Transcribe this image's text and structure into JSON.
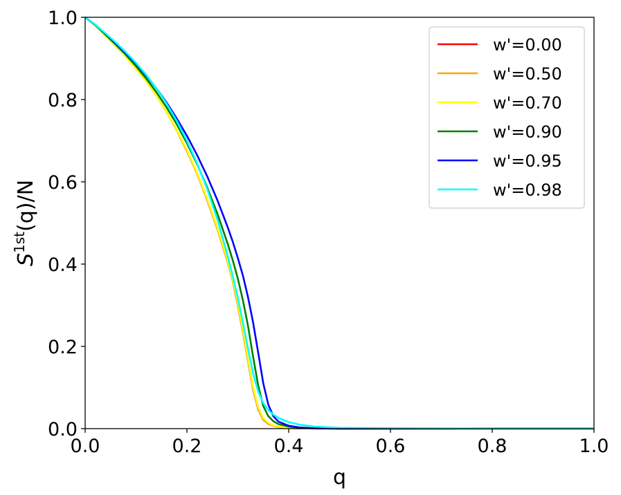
{
  "chart_data": {
    "type": "line",
    "title": "",
    "xlabel": "q",
    "ylabel_base": "S",
    "ylabel_sup": "1st",
    "ylabel_rest": "(q)/N",
    "xlim": [
      0.0,
      1.0
    ],
    "ylim": [
      0.0,
      1.0
    ],
    "xticks": [
      "0.0",
      "0.2",
      "0.4",
      "0.6",
      "0.8",
      "1.0"
    ],
    "yticks": [
      "0.0",
      "0.2",
      "0.4",
      "0.6",
      "0.8",
      "1.0"
    ],
    "grid": false,
    "legend_position": "top-right",
    "series": [
      {
        "name": "w'=0.00",
        "color": "#ff0000",
        "x": [
          0,
          0.02,
          0.04,
          0.06,
          0.08,
          0.1,
          0.12,
          0.14,
          0.16,
          0.18,
          0.2,
          0.22,
          0.24,
          0.26,
          0.28,
          0.29,
          0.3,
          0.31,
          0.32,
          0.33,
          0.34,
          0.35,
          0.36,
          0.37,
          0.38,
          0.4,
          0.42,
          0.45,
          0.5,
          0.6,
          0.8,
          1.0
        ],
        "y": [
          1.0,
          0.98,
          0.955,
          0.93,
          0.905,
          0.875,
          0.845,
          0.81,
          0.77,
          0.725,
          0.675,
          0.62,
          0.555,
          0.485,
          0.405,
          0.36,
          0.3,
          0.235,
          0.165,
          0.095,
          0.048,
          0.022,
          0.012,
          0.007,
          0.004,
          0.002,
          0.001,
          0.0,
          0.0,
          0.0,
          0.0,
          0.0
        ]
      },
      {
        "name": "w'=0.50",
        "color": "#ffa500",
        "x": [
          0,
          0.02,
          0.04,
          0.06,
          0.08,
          0.1,
          0.12,
          0.14,
          0.16,
          0.18,
          0.2,
          0.22,
          0.24,
          0.26,
          0.28,
          0.29,
          0.3,
          0.31,
          0.32,
          0.33,
          0.34,
          0.35,
          0.36,
          0.37,
          0.38,
          0.4,
          0.42,
          0.45,
          0.5,
          0.6,
          0.8,
          1.0
        ],
        "y": [
          1.0,
          0.98,
          0.955,
          0.93,
          0.905,
          0.875,
          0.845,
          0.81,
          0.77,
          0.725,
          0.676,
          0.62,
          0.556,
          0.486,
          0.406,
          0.361,
          0.302,
          0.237,
          0.167,
          0.097,
          0.05,
          0.023,
          0.013,
          0.007,
          0.004,
          0.002,
          0.001,
          0.0,
          0.0,
          0.0,
          0.0,
          0.0
        ]
      },
      {
        "name": "w'=0.70",
        "color": "#ffff00",
        "x": [
          0,
          0.02,
          0.04,
          0.06,
          0.08,
          0.1,
          0.12,
          0.14,
          0.16,
          0.18,
          0.2,
          0.22,
          0.24,
          0.26,
          0.28,
          0.29,
          0.3,
          0.31,
          0.32,
          0.33,
          0.34,
          0.35,
          0.36,
          0.37,
          0.38,
          0.4,
          0.42,
          0.45,
          0.5,
          0.6,
          0.8,
          1.0
        ],
        "y": [
          1.0,
          0.98,
          0.955,
          0.93,
          0.905,
          0.875,
          0.845,
          0.81,
          0.77,
          0.726,
          0.677,
          0.622,
          0.558,
          0.488,
          0.408,
          0.363,
          0.305,
          0.24,
          0.17,
          0.1,
          0.052,
          0.025,
          0.014,
          0.008,
          0.005,
          0.002,
          0.001,
          0.0,
          0.0,
          0.0,
          0.0,
          0.0
        ]
      },
      {
        "name": "w'=0.90",
        "color": "#008000",
        "x": [
          0,
          0.02,
          0.04,
          0.06,
          0.08,
          0.1,
          0.12,
          0.14,
          0.16,
          0.18,
          0.2,
          0.22,
          0.24,
          0.26,
          0.28,
          0.29,
          0.3,
          0.31,
          0.32,
          0.33,
          0.34,
          0.35,
          0.36,
          0.37,
          0.38,
          0.4,
          0.42,
          0.45,
          0.5,
          0.6,
          0.8,
          1.0
        ],
        "y": [
          1.0,
          0.981,
          0.958,
          0.934,
          0.909,
          0.881,
          0.851,
          0.818,
          0.781,
          0.74,
          0.694,
          0.643,
          0.586,
          0.522,
          0.45,
          0.41,
          0.365,
          0.312,
          0.25,
          0.175,
          0.105,
          0.055,
          0.03,
          0.018,
          0.011,
          0.005,
          0.002,
          0.001,
          0.0,
          0.0,
          0.0,
          0.0
        ]
      },
      {
        "name": "w'=0.95",
        "color": "#0000ff",
        "x": [
          0,
          0.02,
          0.04,
          0.06,
          0.08,
          0.1,
          0.12,
          0.14,
          0.16,
          0.18,
          0.2,
          0.22,
          0.24,
          0.26,
          0.28,
          0.29,
          0.3,
          0.31,
          0.32,
          0.33,
          0.34,
          0.35,
          0.36,
          0.37,
          0.38,
          0.4,
          0.42,
          0.45,
          0.5,
          0.6,
          0.8,
          1.0
        ],
        "y": [
          1.0,
          0.982,
          0.96,
          0.937,
          0.913,
          0.887,
          0.858,
          0.827,
          0.793,
          0.754,
          0.712,
          0.665,
          0.613,
          0.555,
          0.49,
          0.455,
          0.415,
          0.372,
          0.32,
          0.258,
          0.185,
          0.11,
          0.058,
          0.03,
          0.017,
          0.007,
          0.003,
          0.001,
          0.0,
          0.0,
          0.0,
          0.0
        ]
      },
      {
        "name": "w'=0.98",
        "color": "#00ffff",
        "x": [
          0,
          0.02,
          0.04,
          0.06,
          0.08,
          0.1,
          0.12,
          0.14,
          0.16,
          0.18,
          0.2,
          0.22,
          0.24,
          0.26,
          0.28,
          0.29,
          0.3,
          0.31,
          0.32,
          0.33,
          0.34,
          0.35,
          0.36,
          0.37,
          0.38,
          0.4,
          0.42,
          0.45,
          0.5,
          0.6,
          0.8,
          1.0
        ],
        "y": [
          1.0,
          0.982,
          0.961,
          0.939,
          0.915,
          0.889,
          0.86,
          0.827,
          0.79,
          0.748,
          0.7,
          0.645,
          0.582,
          0.508,
          0.42,
          0.372,
          0.318,
          0.258,
          0.195,
          0.135,
          0.09,
          0.062,
          0.045,
          0.034,
          0.026,
          0.016,
          0.01,
          0.005,
          0.002,
          0.001,
          0.0,
          0.0
        ]
      }
    ]
  }
}
